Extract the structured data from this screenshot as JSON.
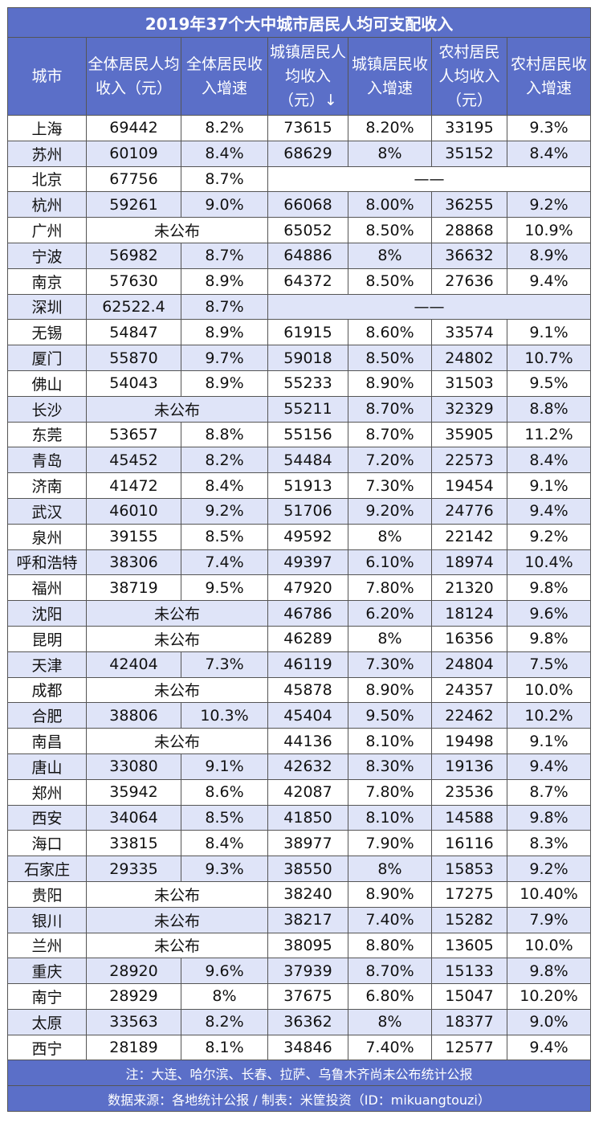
{
  "title": "2019年37个大中城市居民人均可支配收入",
  "headers": [
    "城市",
    "全体居民人均收入（元）",
    "全体居民收入增速",
    "城镇居民人均收入（元）↓",
    "城镇居民收入增速",
    "农村居民人均收入（元）",
    "农村居民收入增速"
  ],
  "rows": [
    {
      "city": "上海",
      "all_income": "69442",
      "all_growth": "8.2%",
      "urban_income": "73615",
      "urban_growth": "8.20%",
      "rural_income": "33195",
      "rural_growth": "9.3%"
    },
    {
      "city": "苏州",
      "all_income": "60109",
      "all_growth": "8.4%",
      "urban_income": "68629",
      "urban_growth": "8%",
      "rural_income": "35152",
      "rural_growth": "8.4%"
    },
    {
      "city": "北京",
      "all_income": "67756",
      "all_growth": "8.7%",
      "urban_na": "——"
    },
    {
      "city": "杭州",
      "all_income": "59261",
      "all_growth": "9.0%",
      "urban_income": "66068",
      "urban_growth": "8.00%",
      "rural_income": "36255",
      "rural_growth": "9.2%"
    },
    {
      "city": "广州",
      "all_na": "未公布",
      "urban_income": "65052",
      "urban_growth": "8.50%",
      "rural_income": "28868",
      "rural_growth": "10.9%"
    },
    {
      "city": "宁波",
      "all_income": "56982",
      "all_growth": "8.7%",
      "urban_income": "64886",
      "urban_growth": "8%",
      "rural_income": "36632",
      "rural_growth": "8.9%"
    },
    {
      "city": "南京",
      "all_income": "57630",
      "all_growth": "8.9%",
      "urban_income": "64372",
      "urban_growth": "8.50%",
      "rural_income": "27636",
      "rural_growth": "9.4%"
    },
    {
      "city": "深圳",
      "all_income": "62522.4",
      "all_growth": "8.7%",
      "urban_na": "——"
    },
    {
      "city": "无锡",
      "all_income": "54847",
      "all_growth": "8.9%",
      "urban_income": "61915",
      "urban_growth": "8.60%",
      "rural_income": "33574",
      "rural_growth": "9.1%"
    },
    {
      "city": "厦门",
      "all_income": "55870",
      "all_growth": "9.7%",
      "urban_income": "59018",
      "urban_growth": "8.50%",
      "rural_income": "24802",
      "rural_growth": "10.7%"
    },
    {
      "city": "佛山",
      "all_income": "54043",
      "all_growth": "8.9%",
      "urban_income": "55233",
      "urban_growth": "8.90%",
      "rural_income": "31503",
      "rural_growth": "9.5%"
    },
    {
      "city": "长沙",
      "all_na": "未公布",
      "urban_income": "55211",
      "urban_growth": "8.70%",
      "rural_income": "32329",
      "rural_growth": "8.8%"
    },
    {
      "city": "东莞",
      "all_income": "53657",
      "all_growth": "8.8%",
      "urban_income": "55156",
      "urban_growth": "8.70%",
      "rural_income": "35905",
      "rural_growth": "11.2%"
    },
    {
      "city": "青岛",
      "all_income": "45452",
      "all_growth": "8.2%",
      "urban_income": "54484",
      "urban_growth": "7.20%",
      "rural_income": "22573",
      "rural_growth": "8.4%"
    },
    {
      "city": "济南",
      "all_income": "41472",
      "all_growth": "8.4%",
      "urban_income": "51913",
      "urban_growth": "7.30%",
      "rural_income": "19454",
      "rural_growth": "9.1%"
    },
    {
      "city": "武汉",
      "all_income": "46010",
      "all_growth": "9.2%",
      "urban_income": "51706",
      "urban_growth": "9.20%",
      "rural_income": "24776",
      "rural_growth": "9.4%"
    },
    {
      "city": "泉州",
      "all_income": "39155",
      "all_growth": "8.5%",
      "urban_income": "49592",
      "urban_growth": "8%",
      "rural_income": "22142",
      "rural_growth": "9.2%"
    },
    {
      "city": "呼和浩特",
      "all_income": "38306",
      "all_growth": "7.4%",
      "urban_income": "49397",
      "urban_growth": "6.10%",
      "rural_income": "18974",
      "rural_growth": "10.4%"
    },
    {
      "city": "福州",
      "all_income": "38719",
      "all_growth": "9.5%",
      "urban_income": "47920",
      "urban_growth": "7.80%",
      "rural_income": "21320",
      "rural_growth": "9.8%"
    },
    {
      "city": "沈阳",
      "all_na": "未公布",
      "urban_income": "46786",
      "urban_growth": "6.20%",
      "rural_income": "18124",
      "rural_growth": "9.6%"
    },
    {
      "city": "昆明",
      "all_na": "未公布",
      "urban_income": "46289",
      "urban_growth": "8%",
      "rural_income": "16356",
      "rural_growth": "9.8%"
    },
    {
      "city": "天津",
      "all_income": "42404",
      "all_growth": "7.3%",
      "urban_income": "46119",
      "urban_growth": "7.30%",
      "rural_income": "24804",
      "rural_growth": "7.5%"
    },
    {
      "city": "成都",
      "all_na": "未公布",
      "urban_income": "45878",
      "urban_growth": "8.90%",
      "rural_income": "24357",
      "rural_growth": "10.0%"
    },
    {
      "city": "合肥",
      "all_income": "38806",
      "all_growth": "10.3%",
      "urban_income": "45404",
      "urban_growth": "9.50%",
      "rural_income": "22462",
      "rural_growth": "10.2%"
    },
    {
      "city": "南昌",
      "all_na": "未公布",
      "urban_income": "44136",
      "urban_growth": "8.10%",
      "rural_income": "19498",
      "rural_growth": "9.1%"
    },
    {
      "city": "唐山",
      "all_income": "33080",
      "all_growth": "9.1%",
      "urban_income": "42632",
      "urban_growth": "8.30%",
      "rural_income": "19136",
      "rural_growth": "9.4%"
    },
    {
      "city": "郑州",
      "all_income": "35942",
      "all_growth": "8.6%",
      "urban_income": "42087",
      "urban_growth": "7.80%",
      "rural_income": "23536",
      "rural_growth": "8.7%"
    },
    {
      "city": "西安",
      "all_income": "34064",
      "all_growth": "8.5%",
      "urban_income": "41850",
      "urban_growth": "8.10%",
      "rural_income": "14588",
      "rural_growth": "9.8%"
    },
    {
      "city": "海口",
      "all_income": "33815",
      "all_growth": "8.4%",
      "urban_income": "38977",
      "urban_growth": "7.90%",
      "rural_income": "16116",
      "rural_growth": "8.3%"
    },
    {
      "city": "石家庄",
      "all_income": "29335",
      "all_growth": "9.3%",
      "urban_income": "38550",
      "urban_growth": "8%",
      "rural_income": "15853",
      "rural_growth": "9.2%"
    },
    {
      "city": "贵阳",
      "all_na": "未公布",
      "urban_income": "38240",
      "urban_growth": "8.90%",
      "rural_income": "17275",
      "rural_growth": "10.40%"
    },
    {
      "city": "银川",
      "all_na": "未公布",
      "urban_income": "38217",
      "urban_growth": "7.40%",
      "rural_income": "15282",
      "rural_growth": "7.9%"
    },
    {
      "city": "兰州",
      "all_na": "未公布",
      "urban_income": "38095",
      "urban_growth": "8.80%",
      "rural_income": "13605",
      "rural_growth": "10.0%"
    },
    {
      "city": "重庆",
      "all_income": "28920",
      "all_growth": "9.6%",
      "urban_income": "37939",
      "urban_growth": "8.70%",
      "rural_income": "15133",
      "rural_growth": "9.8%"
    },
    {
      "city": "南宁",
      "all_income": "28929",
      "all_growth": "8%",
      "urban_income": "37675",
      "urban_growth": "6.80%",
      "rural_income": "15047",
      "rural_growth": "10.20%"
    },
    {
      "city": "太原",
      "all_income": "33563",
      "all_growth": "8.2%",
      "urban_income": "36362",
      "urban_growth": "8%",
      "rural_income": "18377",
      "rural_growth": "9.0%"
    },
    {
      "city": "西宁",
      "all_income": "28189",
      "all_growth": "8.1%",
      "urban_income": "34846",
      "urban_growth": "7.40%",
      "rural_income": "12577",
      "rural_growth": "9.4%"
    }
  ],
  "note": "注：大连、哈尔滨、长春、拉萨、乌鲁木齐尚未公布统计公报",
  "source": "数据来源：各地统计公报 / 制表：米筐投资（ID：mikuangtouzi）"
}
